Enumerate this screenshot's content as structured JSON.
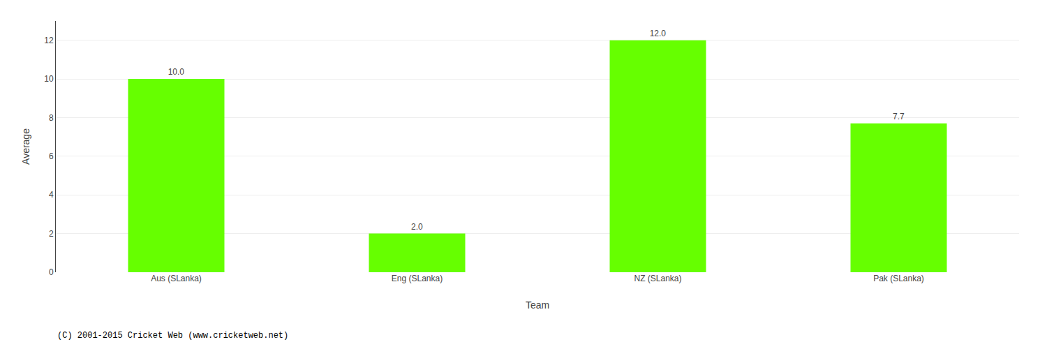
{
  "chart_data": {
    "type": "bar",
    "categories": [
      "Aus (SLanka)",
      "Eng (SLanka)",
      "NZ (SLanka)",
      "Pak (SLanka)"
    ],
    "values": [
      10.0,
      2.0,
      12.0,
      7.7
    ],
    "value_labels": [
      "10.0",
      "2.0",
      "12.0",
      "7.7"
    ],
    "data_labels": true,
    "color": "#66ff00",
    "xlabel": "Team",
    "ylabel": "Average",
    "ylim": [
      0,
      13
    ],
    "yticks": [
      0,
      2,
      4,
      6,
      8,
      10,
      12
    ],
    "grid": true,
    "annotations": [
      "(C) 2001-2015 Cricket Web (www.cricketweb.net)"
    ]
  }
}
